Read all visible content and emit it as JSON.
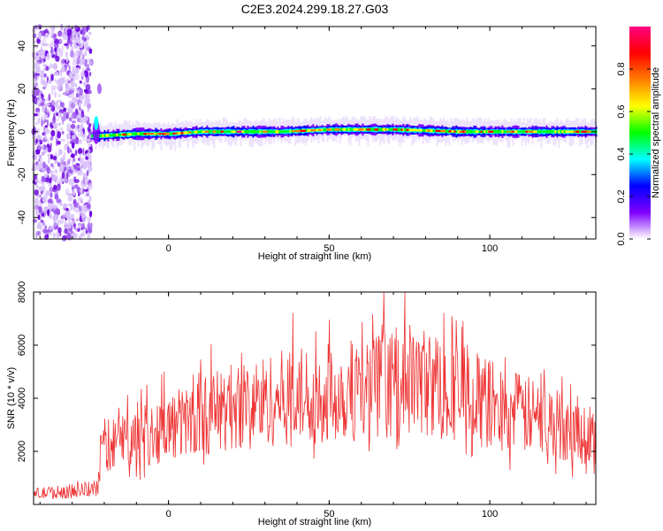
{
  "title": "C2E3.2024.299.18.27.G03",
  "chart_data": [
    {
      "type": "heatmap",
      "xlabel": "Height of straight line (km)",
      "ylabel": "Frequency (Hz)",
      "xlim": [
        -42,
        133
      ],
      "ylim": [
        -50,
        49
      ],
      "xticks": [
        0,
        50,
        100
      ],
      "xtick_labels": [
        "0",
        "50",
        "100"
      ],
      "yticks": [
        -40,
        -20,
        0,
        20,
        40
      ],
      "ytick_labels": [
        "-40",
        "-20",
        "0",
        "20",
        "40"
      ],
      "colorbar": {
        "label": "Normalized spectral amplitude",
        "ticks": [
          0.0,
          0.2,
          0.4,
          0.6,
          0.8
        ],
        "tick_labels": [
          "0.0",
          "0.2",
          "0.4",
          "0.6",
          "0.8"
        ],
        "range": [
          0,
          1
        ],
        "colormap": [
          "#ffffff",
          "#7f00ff",
          "#0000ff",
          "#00ffff",
          "#00ff00",
          "#ffff00",
          "#ff7f00",
          "#ff0000",
          "#ff0080"
        ]
      },
      "noise_region_x": [
        -42,
        -24
      ],
      "signal_onset_x": -24,
      "carrier": {
        "x": [
          -22,
          -10,
          0,
          10,
          20,
          35,
          50,
          70,
          90,
          110,
          133
        ],
        "y": [
          -2,
          -1,
          -1,
          0,
          0,
          0,
          1,
          1,
          0,
          0,
          0
        ]
      }
    },
    {
      "type": "line",
      "xlabel": "Height of straight line (km)",
      "ylabel": "SNR (10 * v/v)",
      "xlim": [
        -42,
        133
      ],
      "ylim": [
        0,
        8000
      ],
      "xticks": [
        0,
        50,
        100
      ],
      "xtick_labels": [
        "0",
        "50",
        "100"
      ],
      "yticks": [
        2000,
        4000,
        6000,
        8000
      ],
      "ytick_labels": [
        "2000",
        "4000",
        "6000",
        "8000"
      ],
      "color": "#ee3333",
      "series": [
        {
          "x": [
            -42,
            -30,
            -22,
            -21,
            -15,
            -5,
            0,
            10,
            20,
            30,
            40,
            50,
            60,
            70,
            75,
            80,
            90,
            100,
            110,
            120,
            125,
            133
          ],
          "y": [
            400,
            500,
            600,
            2200,
            2400,
            2700,
            2900,
            3300,
            3700,
            3900,
            4100,
            4200,
            4300,
            4600,
            4700,
            4600,
            4300,
            3800,
            3400,
            3100,
            2800,
            2600
          ]
        }
      ]
    }
  ]
}
